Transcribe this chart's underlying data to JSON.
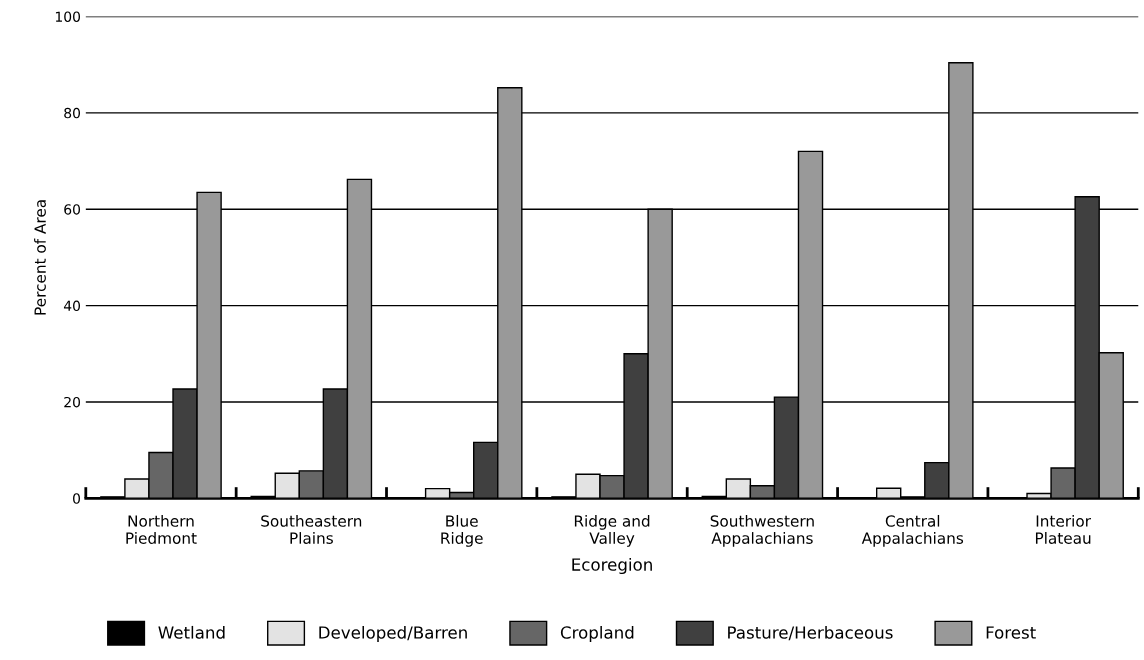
{
  "chart_data": {
    "type": "bar",
    "xlabel": "Ecoregion",
    "ylabel": "Percent of Area",
    "categories": [
      "Northern\nPiedmont",
      "Southeastern\nPlains",
      "Blue\nRidge",
      "Ridge and\nValley",
      "Southwestern\nAppalachians",
      "Central\nAppalachians",
      "Interior\nPlateau"
    ],
    "series": [
      {
        "name": "Wetland",
        "color": "#000000",
        "values": [
          0.3,
          0.4,
          null,
          0.3,
          0.4,
          null,
          null
        ]
      },
      {
        "name": "Developed/Barren",
        "color": "#e3e3e3",
        "values": [
          4,
          5.2,
          2,
          5,
          4,
          2.1,
          1
        ]
      },
      {
        "name": "Cropland",
        "color": "#666666",
        "values": [
          9.5,
          5.7,
          1.2,
          4.7,
          2.6,
          0.3,
          6.3
        ]
      },
      {
        "name": "Pasture/Herbaceous",
        "color": "#404040",
        "values": [
          22.7,
          22.7,
          11.6,
          30,
          21,
          7.4,
          62.6
        ]
      },
      {
        "name": "Forest",
        "color": "#999999",
        "values": [
          63.5,
          66.2,
          85.2,
          60,
          72,
          90.4,
          30.2
        ]
      }
    ],
    "ylim": [
      0,
      100
    ],
    "yticks": [
      0,
      20,
      40,
      60,
      80,
      100
    ],
    "grid": "y",
    "legend": "bottom"
  }
}
